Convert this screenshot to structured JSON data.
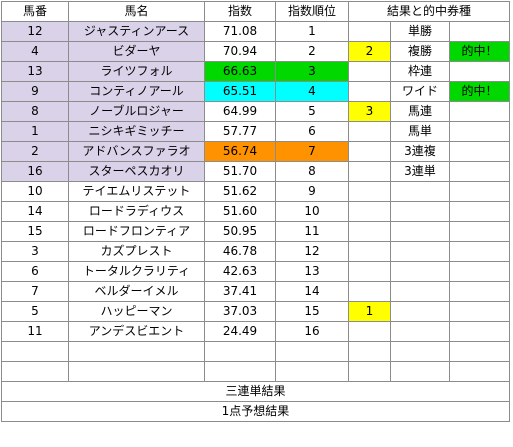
{
  "headers": {
    "number": "馬番",
    "name": "馬名",
    "index": "指数",
    "rank": "指数順位",
    "results": "結果と的中券種"
  },
  "rows": [
    {
      "number": "12",
      "name": "ジャスティンアース",
      "index": "71.08",
      "rank": "1",
      "result": "",
      "bet": "単勝",
      "hit": "",
      "selected": true,
      "idx_color": ""
    },
    {
      "number": "4",
      "name": "ビダーヤ",
      "index": "70.94",
      "rank": "2",
      "result": "2",
      "bet": "複勝",
      "hit": "的中！",
      "selected": true,
      "idx_color": ""
    },
    {
      "number": "13",
      "name": "ライツフォル",
      "index": "66.63",
      "rank": "3",
      "result": "",
      "bet": "枠連",
      "hit": "",
      "selected": true,
      "idx_color": "#00d800"
    },
    {
      "number": "9",
      "name": "コンティノアール",
      "index": "65.51",
      "rank": "4",
      "result": "",
      "bet": "ワイド",
      "hit": "的中！",
      "selected": true,
      "idx_color": "#00ffff"
    },
    {
      "number": "8",
      "name": "ノーブルロジャー",
      "index": "64.99",
      "rank": "5",
      "result": "3",
      "bet": "馬連",
      "hit": "",
      "selected": true,
      "idx_color": ""
    },
    {
      "number": "1",
      "name": "ニシキギミッチー",
      "index": "57.77",
      "rank": "6",
      "result": "",
      "bet": "馬単",
      "hit": "",
      "selected": true,
      "idx_color": ""
    },
    {
      "number": "2",
      "name": "アドバンスファラオ",
      "index": "56.74",
      "rank": "7",
      "result": "",
      "bet": "3連複",
      "hit": "",
      "selected": true,
      "idx_color": "#ff9200"
    },
    {
      "number": "16",
      "name": "スターペスカオリ",
      "index": "51.70",
      "rank": "8",
      "result": "",
      "bet": "3連単",
      "hit": "",
      "selected": true,
      "idx_color": ""
    },
    {
      "number": "10",
      "name": "テイエムリステット",
      "index": "51.62",
      "rank": "9",
      "result": "",
      "bet": "",
      "hit": "",
      "selected": false,
      "idx_color": ""
    },
    {
      "number": "14",
      "name": "ロードラディウス",
      "index": "51.60",
      "rank": "10",
      "result": "",
      "bet": "",
      "hit": "",
      "selected": false,
      "idx_color": ""
    },
    {
      "number": "15",
      "name": "ロードフロンティア",
      "index": "50.95",
      "rank": "11",
      "result": "",
      "bet": "",
      "hit": "",
      "selected": false,
      "idx_color": ""
    },
    {
      "number": "3",
      "name": "カズプレスト",
      "index": "46.78",
      "rank": "12",
      "result": "",
      "bet": "",
      "hit": "",
      "selected": false,
      "idx_color": ""
    },
    {
      "number": "6",
      "name": "トータルクラリティ",
      "index": "42.63",
      "rank": "13",
      "result": "",
      "bet": "",
      "hit": "",
      "selected": false,
      "idx_color": ""
    },
    {
      "number": "7",
      "name": "ベルダーイメル",
      "index": "37.41",
      "rank": "14",
      "result": "",
      "bet": "",
      "hit": "",
      "selected": false,
      "idx_color": ""
    },
    {
      "number": "5",
      "name": "ハッピーマン",
      "index": "37.03",
      "rank": "15",
      "result": "1",
      "bet": "",
      "hit": "",
      "selected": false,
      "idx_color": ""
    },
    {
      "number": "11",
      "name": "アンデスビエント",
      "index": "24.49",
      "rank": "16",
      "result": "",
      "bet": "",
      "hit": "",
      "selected": false,
      "idx_color": ""
    }
  ],
  "footer": {
    "trifecta_result": "三連単結果",
    "one_point_result": "1点予想結果"
  },
  "colors": {
    "selected_row": "#d9d2e9",
    "result_highlight": "#ffff00",
    "hit_highlight": "#00d800"
  }
}
